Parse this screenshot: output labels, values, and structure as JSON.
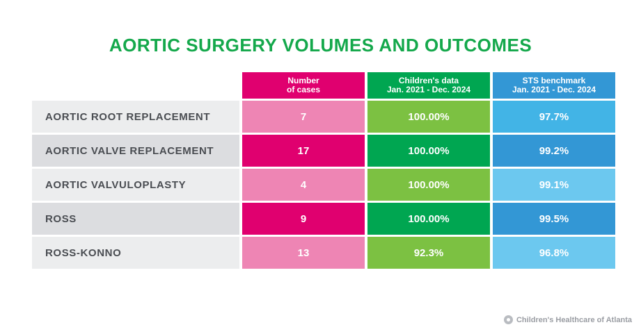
{
  "chart_data": {
    "type": "table",
    "title": "AORTIC SURGERY VOLUMES AND OUTCOMES",
    "columns": [
      {
        "line1": "Number",
        "line2": "of cases"
      },
      {
        "line1": "Children's data",
        "line2": "Jan. 2021 - Dec. 2024"
      },
      {
        "line1": "STS benchmark",
        "line2": "Jan. 2021 - Dec. 2024"
      }
    ],
    "rows": [
      {
        "label": "AORTIC ROOT REPLACEMENT",
        "cases": "7",
        "childrens": "100.00%",
        "sts": "97.7%"
      },
      {
        "label": "AORTIC VALVE REPLACEMENT",
        "cases": "17",
        "childrens": "100.00%",
        "sts": "99.2%"
      },
      {
        "label": "AORTIC VALVULOPLASTY",
        "cases": "4",
        "childrens": "100.00%",
        "sts": "99.1%"
      },
      {
        "label": "ROSS",
        "cases": "9",
        "childrens": "100.00%",
        "sts": "99.5%"
      },
      {
        "label": "ROSS-KONNO",
        "cases": "13",
        "childrens": "92.3%",
        "sts": "96.8%"
      }
    ]
  },
  "colors": {
    "title": "#14a84b",
    "header": [
      "#e0006f",
      "#00a651",
      "#3397d5"
    ],
    "cases": [
      "#ee85b4",
      "#e0006f",
      "#ee85b4",
      "#e0006f",
      "#ee85b4"
    ],
    "childrens": [
      "#7cc142",
      "#00a651",
      "#7cc142",
      "#00a651",
      "#7cc142"
    ],
    "sts": [
      "#42b4e6",
      "#3397d5",
      "#6cc8ef",
      "#3397d5",
      "#6cc8ef"
    ]
  },
  "footer": {
    "brand": "Children's Healthcare of Atlanta",
    "logo_icon": "childrens-healthcare-logo-icon"
  }
}
